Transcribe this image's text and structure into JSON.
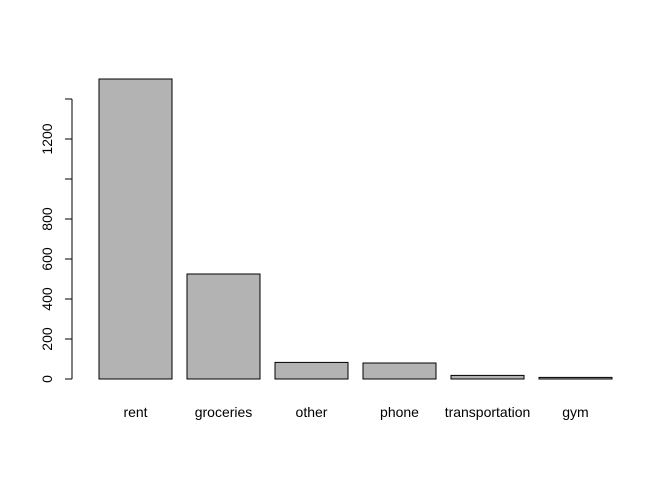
{
  "chart_data": {
    "type": "bar",
    "categories": [
      "rent",
      "groceries",
      "other",
      "phone",
      "transportation",
      "gym"
    ],
    "values": [
      1500,
      525,
      83,
      80,
      18,
      8
    ],
    "title": "",
    "xlabel": "",
    "ylabel": "",
    "ylim": [
      0,
      1500
    ],
    "yticks": [
      0,
      200,
      400,
      600,
      800,
      1000,
      1200,
      1400
    ],
    "ytick_labels": [
      "0",
      "200",
      "400",
      "600",
      "800",
      "",
      "1200",
      ""
    ],
    "grid": false,
    "legend": "none",
    "colors": {
      "bar_fill": "#b3b3b3",
      "bar_stroke": "#000000",
      "axis": "#000000",
      "background": "#ffffff"
    }
  }
}
